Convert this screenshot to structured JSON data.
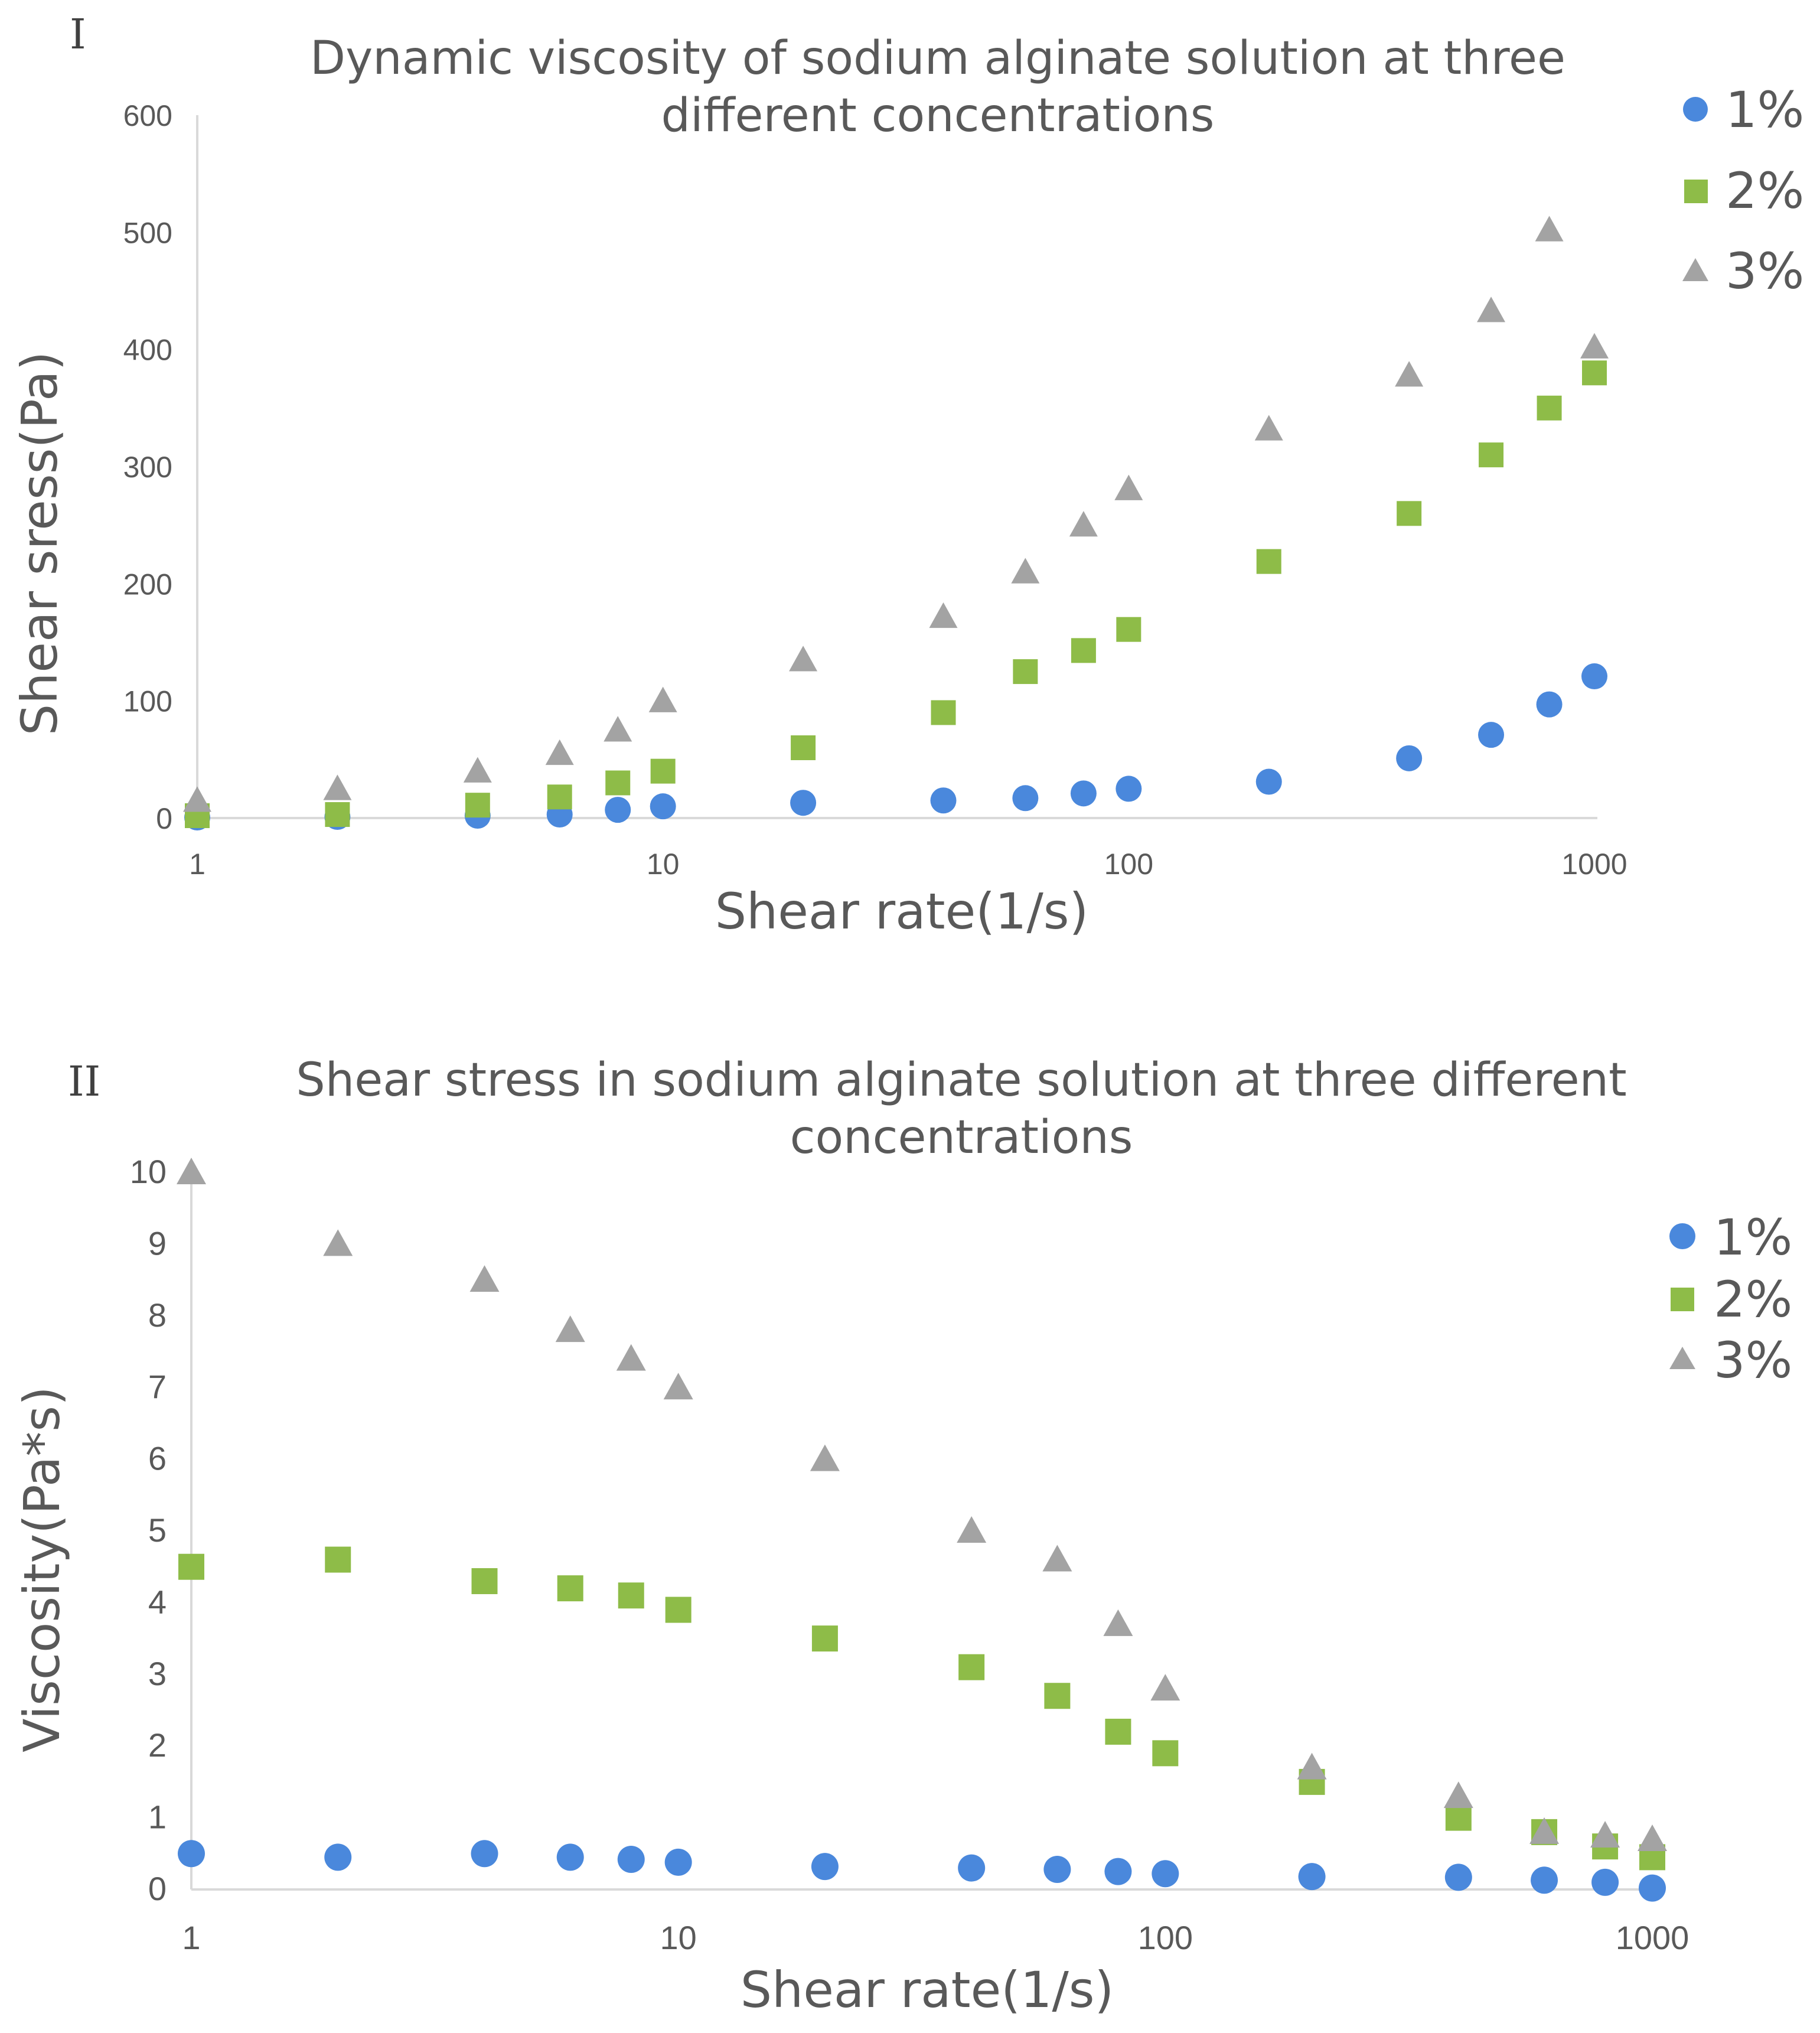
{
  "colors": {
    "s1": "#4a88dc",
    "s2": "#8ebc48",
    "s3": "#a3a3a3",
    "axis": "#d9d9d9",
    "text": "#595959"
  },
  "chart_data": [
    {
      "panel_label": "I",
      "type": "scatter",
      "title_lines": [
        "Dynamic viscosity of sodium alginate solution at three",
        "different concentrations"
      ],
      "xlabel": "Shear rate(1/s)",
      "ylabel": "Shear sress(Pa)",
      "xscale": "log",
      "xlim": [
        1,
        1000
      ],
      "ylim": [
        0,
        600
      ],
      "xticks": [
        1,
        10,
        100,
        1000
      ],
      "yticks": [
        0,
        100,
        200,
        300,
        400,
        500,
        600
      ],
      "x": [
        1,
        2,
        4,
        6,
        8,
        10,
        20,
        40,
        60,
        80,
        100,
        200,
        400,
        600,
        800,
        1000
      ],
      "legend_position": "top-right",
      "series": [
        {
          "name": "1%",
          "marker": "circle",
          "values": [
            0.5,
            1,
            2,
            3,
            7,
            10,
            13,
            15,
            17,
            21,
            25,
            31,
            51,
            71,
            97,
            121
          ]
        },
        {
          "name": "2%",
          "marker": "square",
          "values": [
            2,
            3,
            11,
            18,
            30,
            40,
            60,
            90,
            125,
            143,
            161,
            219,
            260,
            310,
            350,
            380
          ]
        },
        {
          "name": "3%",
          "marker": "triangle",
          "values": [
            15,
            25,
            40,
            55,
            75,
            100,
            135,
            172,
            210,
            250,
            281,
            332,
            378,
            433,
            502,
            402
          ]
        }
      ]
    },
    {
      "panel_label": "II",
      "type": "scatter",
      "title_lines": [
        "Shear stress in sodium alginate solution at three different",
        "concentrations"
      ],
      "xlabel": "Shear rate(1/s)",
      "ylabel": "Viscosity(Pa*s)",
      "xscale": "log",
      "xlim": [
        1,
        1000
      ],
      "ylim": [
        0,
        10
      ],
      "xticks": [
        1,
        10,
        100,
        1000
      ],
      "yticks": [
        0,
        1,
        2,
        3,
        4,
        5,
        6,
        7,
        8,
        9,
        10
      ],
      "x": [
        1,
        2,
        4,
        6,
        8,
        10,
        20,
        40,
        60,
        80,
        100,
        200,
        400,
        600,
        800,
        1000
      ],
      "legend_position": "top-right",
      "series": [
        {
          "name": "1%",
          "marker": "circle",
          "values": [
            0.5,
            0.45,
            0.5,
            0.45,
            0.42,
            0.38,
            0.32,
            0.3,
            0.28,
            0.25,
            0.22,
            0.18,
            0.17,
            0.13,
            0.1,
            0.02
          ]
        },
        {
          "name": "2%",
          "marker": "square",
          "values": [
            4.5,
            4.6,
            4.3,
            4.2,
            4.1,
            3.9,
            3.5,
            3.1,
            2.7,
            2.2,
            1.9,
            1.5,
            1.0,
            0.8,
            0.6,
            0.45
          ]
        },
        {
          "name": "3%",
          "marker": "triangle",
          "values": [
            10,
            9.0,
            8.5,
            7.8,
            7.4,
            7.0,
            6.0,
            5.0,
            4.6,
            3.7,
            2.8,
            1.7,
            1.3,
            0.8,
            0.75,
            0.7
          ]
        }
      ]
    }
  ]
}
